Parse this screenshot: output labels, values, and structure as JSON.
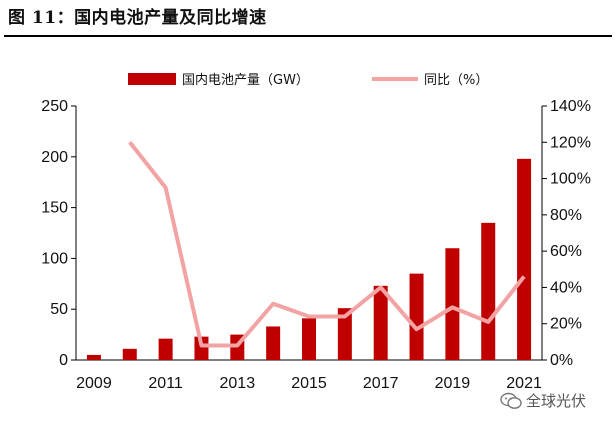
{
  "figure_title": "图 11：国内电池产量及同比增速",
  "watermark": "全球光伏",
  "colors": {
    "bar": "#C00000",
    "line": "#F2A3A3",
    "axis": "#000000"
  },
  "chart_data": {
    "type": "bar+line",
    "title": "",
    "categories": [
      "2009",
      "2010",
      "2011",
      "2012",
      "2013",
      "2014",
      "2015",
      "2016",
      "2017",
      "2018",
      "2019",
      "2020",
      "2021"
    ],
    "x_tick_labels": [
      "2009",
      "2011",
      "2013",
      "2015",
      "2017",
      "2019",
      "2021"
    ],
    "series": [
      {
        "name": "国内电池产量（GW）",
        "type": "bar",
        "axis": "left",
        "values": [
          5,
          11,
          21,
          23,
          25,
          33,
          41,
          51,
          73,
          85,
          110,
          135,
          198
        ]
      },
      {
        "name": "同比（%）",
        "type": "line",
        "axis": "right",
        "values": [
          null,
          120,
          95,
          8,
          8,
          31,
          24,
          24,
          40,
          17,
          29,
          21,
          46
        ]
      }
    ],
    "y_left": {
      "min": 0,
      "max": 250,
      "ticks": [
        0,
        50,
        100,
        150,
        200,
        250
      ]
    },
    "y_right": {
      "min": 0,
      "max": 140,
      "ticks": [
        "0%",
        "20%",
        "40%",
        "60%",
        "80%",
        "100%",
        "120%",
        "140%"
      ]
    },
    "legend_position": "top",
    "grid": false
  }
}
